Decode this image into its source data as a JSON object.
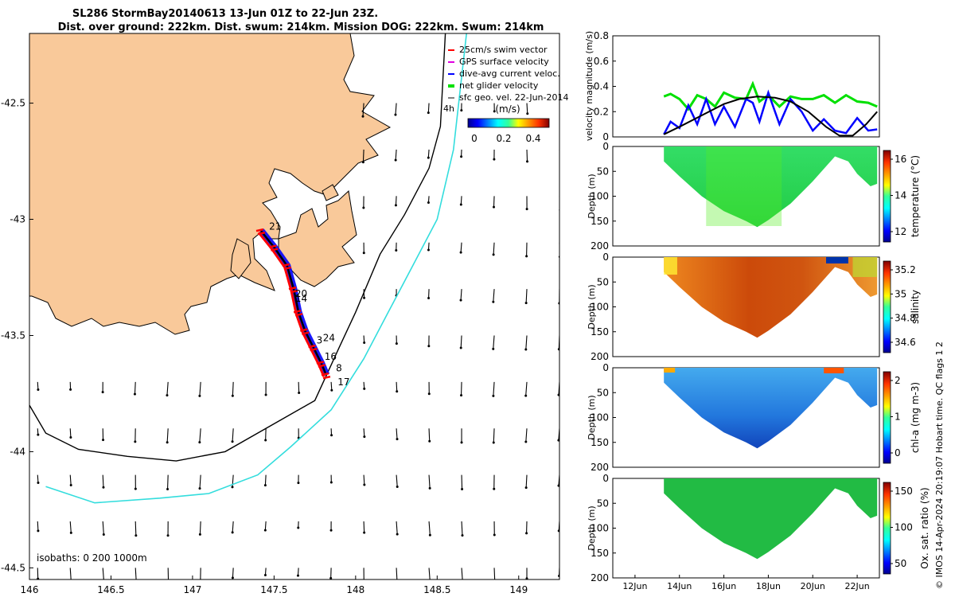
{
  "colors": {
    "land": "#f9c99a",
    "swim_vector": "#ff0000",
    "gps_velocity": "#e000e0",
    "dive_avg": "#0000ff",
    "net_glider": "#00e000",
    "isobath_200": "#000000",
    "isobath_1000": "#33dddd",
    "glider_track_red": "#ff0000",
    "glider_track_blue": "#0000ff"
  },
  "chart_data": [
    {
      "type": "map",
      "title_line1": "SL286 StormBay20140613 13-Jun 01Z to 22-Jun 23Z.",
      "title_line2": "Dist. over ground: 222km. Dist. swum: 214km. Mission DOG: 222km. Swum: 214km",
      "xlim": [
        146,
        149.25
      ],
      "ylim": [
        -44.55,
        -42.2
      ],
      "xticks": [
        "146",
        "146.5",
        "147",
        "147.5",
        "148",
        "148.5",
        "149"
      ],
      "yticks": [
        "-42.5",
        "-43",
        "-43.5",
        "-44",
        "-44.5"
      ],
      "legend": [
        "25cm/s swim vector",
        "GPS surface velocity",
        "dive-avg current veloc.",
        "net glider velocity",
        "sfc geo. vel. 22-Jun-2014"
      ],
      "legend_extra": "4h",
      "colorbar_label": "(m/s)",
      "colorbar_ticks": [
        "0",
        "0.2",
        "0.4"
      ],
      "colorbar_range": [
        0,
        0.5
      ],
      "isobath_label": "isobaths: 0   200   1000m",
      "day_labels": [
        {
          "label": "21",
          "lon": 147.45,
          "lat": -43.03
        },
        {
          "label": "20",
          "lon": 147.61,
          "lat": -43.32
        },
        {
          "label": "14",
          "lon": 147.61,
          "lat": -43.34
        },
        {
          "label": "24",
          "lon": 147.78,
          "lat": -43.51
        },
        {
          "label": "3",
          "lon": 147.74,
          "lat": -43.52
        },
        {
          "label": "16",
          "lon": 147.79,
          "lat": -43.59
        },
        {
          "label": "8",
          "lon": 147.86,
          "lat": -43.64
        },
        {
          "label": "17",
          "lon": 147.87,
          "lat": -43.7
        }
      ],
      "track": [
        [
          147.42,
          -43.05
        ],
        [
          147.5,
          -43.12
        ],
        [
          147.58,
          -43.2
        ],
        [
          147.62,
          -43.3
        ],
        [
          147.65,
          -43.4
        ],
        [
          147.69,
          -43.48
        ],
        [
          147.74,
          -43.55
        ],
        [
          147.79,
          -43.62
        ],
        [
          147.82,
          -43.67
        ]
      ],
      "isobath_200m": [
        [
          146,
          -43.8
        ],
        [
          146.1,
          -43.92
        ],
        [
          146.3,
          -43.99
        ],
        [
          146.6,
          -44.02
        ],
        [
          146.9,
          -44.04
        ],
        [
          147.2,
          -44.0
        ],
        [
          147.5,
          -43.88
        ],
        [
          147.75,
          -43.78
        ],
        [
          147.9,
          -43.55
        ],
        [
          148.0,
          -43.4
        ],
        [
          148.15,
          -43.15
        ],
        [
          148.3,
          -42.98
        ],
        [
          148.45,
          -42.78
        ],
        [
          148.52,
          -42.6
        ],
        [
          148.55,
          -42.2
        ]
      ],
      "isobath_1000m": [
        [
          146.1,
          -44.15
        ],
        [
          146.4,
          -44.22
        ],
        [
          146.8,
          -44.2
        ],
        [
          147.1,
          -44.18
        ],
        [
          147.4,
          -44.1
        ],
        [
          147.6,
          -43.98
        ],
        [
          147.85,
          -43.82
        ],
        [
          148.05,
          -43.6
        ],
        [
          148.2,
          -43.4
        ],
        [
          148.35,
          -43.2
        ],
        [
          148.5,
          -43.0
        ],
        [
          148.6,
          -42.7
        ],
        [
          148.68,
          -42.2
        ]
      ]
    },
    {
      "type": "line",
      "ylabel": "velocity magnitude (m/s)",
      "ylim": [
        0,
        0.8
      ],
      "yticks": [
        "0",
        "0.2",
        "0.4",
        "0.6",
        "0.8"
      ],
      "xlim": [
        11,
        23
      ],
      "series": [
        {
          "name": "net glider velocity",
          "color": "#00e000",
          "x": [
            13.3,
            13.6,
            14.0,
            14.4,
            14.8,
            15.2,
            15.6,
            16.0,
            16.5,
            17.0,
            17.3,
            17.6,
            18.0,
            18.5,
            19.0,
            19.5,
            20.0,
            20.5,
            21.0,
            21.5,
            22.0,
            22.5,
            22.9
          ],
          "y": [
            0.32,
            0.34,
            0.3,
            0.22,
            0.33,
            0.3,
            0.24,
            0.35,
            0.31,
            0.3,
            0.42,
            0.28,
            0.33,
            0.24,
            0.32,
            0.3,
            0.3,
            0.33,
            0.27,
            0.33,
            0.28,
            0.27,
            0.24
          ]
        },
        {
          "name": "dive-avg current veloc.",
          "color": "#0000ff",
          "x": [
            13.3,
            13.6,
            14.0,
            14.4,
            14.8,
            15.2,
            15.6,
            16.0,
            16.5,
            17.0,
            17.3,
            17.6,
            18.0,
            18.5,
            19.0,
            19.5,
            20.0,
            20.5,
            21.0,
            21.5,
            22.0,
            22.5,
            22.9
          ],
          "y": [
            0.02,
            0.12,
            0.07,
            0.25,
            0.1,
            0.3,
            0.1,
            0.24,
            0.08,
            0.3,
            0.27,
            0.12,
            0.35,
            0.1,
            0.3,
            0.2,
            0.05,
            0.14,
            0.05,
            0.03,
            0.15,
            0.05,
            0.06
          ]
        },
        {
          "name": "sfc geo. vel.",
          "color": "#000000",
          "x": [
            13.3,
            14.0,
            15.0,
            16.0,
            16.7,
            17.5,
            18.3,
            19.0,
            19.8,
            20.6,
            21.2,
            21.8,
            22.4,
            22.9
          ],
          "y": [
            0.02,
            0.08,
            0.17,
            0.26,
            0.3,
            0.32,
            0.31,
            0.28,
            0.2,
            0.08,
            0.01,
            0.01,
            0.1,
            0.2
          ]
        }
      ]
    },
    {
      "type": "heatmap",
      "panels": [
        {
          "name": "temperature",
          "clabel": "temperature (°C)",
          "cticks": [
            "12",
            "14",
            "16"
          ],
          "ylabel": "Depth (m)",
          "yticks": [
            "0",
            "50",
            "100",
            "150",
            "200"
          ]
        },
        {
          "name": "salinity",
          "clabel": "salinity",
          "cticks": [
            "34.6",
            "34.8",
            "35",
            "35.2"
          ],
          "ylabel": "Depth (m)",
          "yticks": [
            "0",
            "50",
            "100",
            "150",
            "200"
          ]
        },
        {
          "name": "chl-a",
          "clabel": "chl-a (mg m-3)",
          "cticks": [
            "0",
            "1",
            "2"
          ],
          "ylabel": "Depth (m)",
          "yticks": [
            "0",
            "50",
            "100",
            "150",
            "200"
          ]
        },
        {
          "name": "oxygen",
          "clabel": "Ox. sat. ratio (%)",
          "cticks": [
            "50",
            "100",
            "150"
          ],
          "ylabel": "Depth (m)",
          "yticks": [
            "0",
            "50",
            "100",
            "150",
            "200"
          ]
        }
      ],
      "xticks": [
        "12Jun",
        "14Jun",
        "16Jun",
        "18Jun",
        "20Jun",
        "22Jun"
      ],
      "bottom_profile": {
        "x": [
          13.3,
          14.0,
          15.0,
          16.0,
          17.0,
          17.5,
          18.0,
          19.0,
          20.0,
          20.6,
          21.0,
          21.6,
          22.0,
          22.6,
          22.9
        ],
        "depth": [
          30,
          60,
          100,
          130,
          150,
          162,
          148,
          115,
          70,
          40,
          20,
          30,
          55,
          80,
          75
        ]
      }
    }
  ],
  "footer_note": "© IMOS 14-Apr-2024 20:19:07 Hobart time. QC flags 1  2"
}
